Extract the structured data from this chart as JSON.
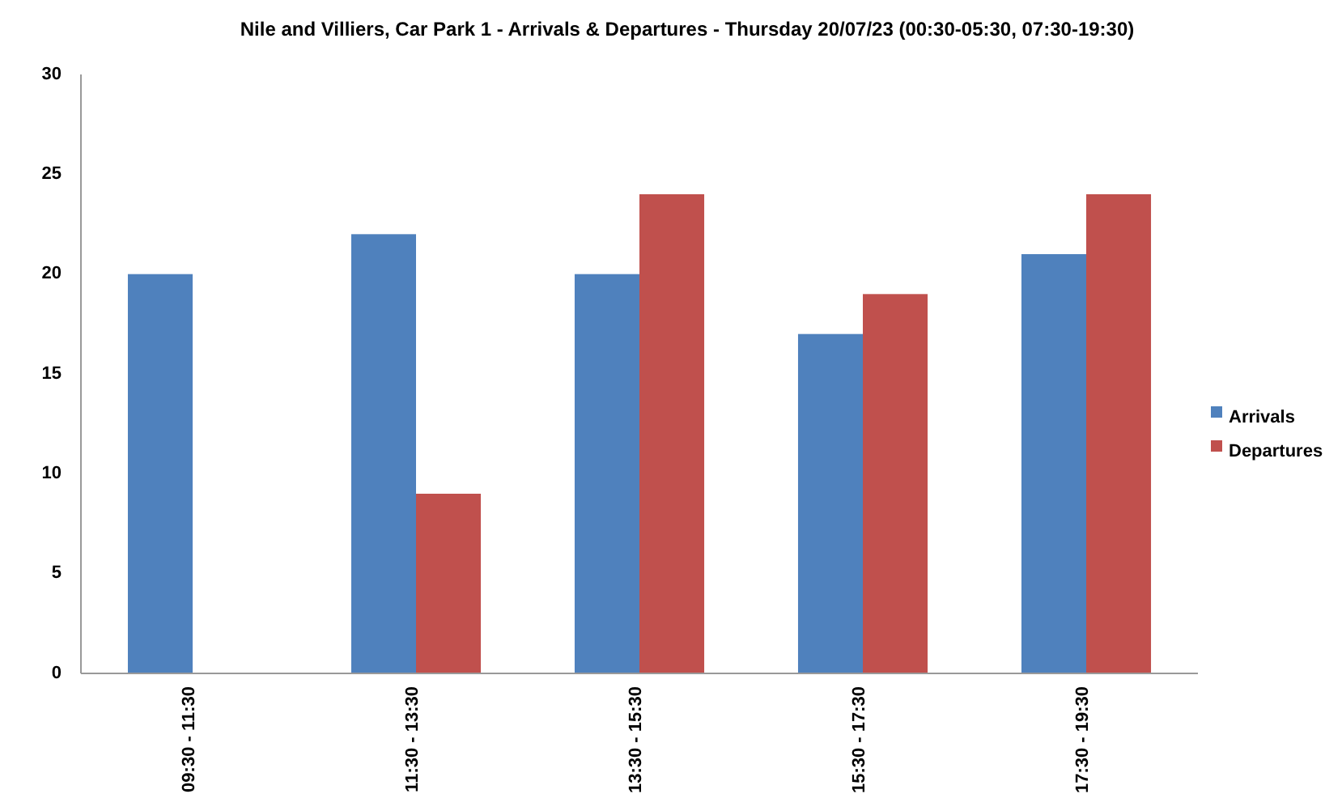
{
  "chart_data": {
    "type": "bar",
    "title": "Nile and Villiers, Car Park 1 - Arrivals & Departures - Thursday 20/07/23 (00:30-05:30, 07:30-19:30)",
    "categories": [
      "09:30 - 11:30",
      "11:30 - 13:30",
      "13:30 - 15:30",
      "15:30 - 17:30",
      "17:30 - 19:30"
    ],
    "series": [
      {
        "name": "Arrivals",
        "color": "#4f81bd",
        "values": [
          20,
          22,
          20,
          17,
          21
        ]
      },
      {
        "name": "Departures",
        "color": "#c0504d",
        "values": [
          0,
          9,
          24,
          19,
          24
        ]
      }
    ],
    "ylim": [
      0,
      30
    ],
    "yticks": [
      0,
      5,
      10,
      15,
      20,
      25,
      30
    ],
    "legend": "right"
  }
}
